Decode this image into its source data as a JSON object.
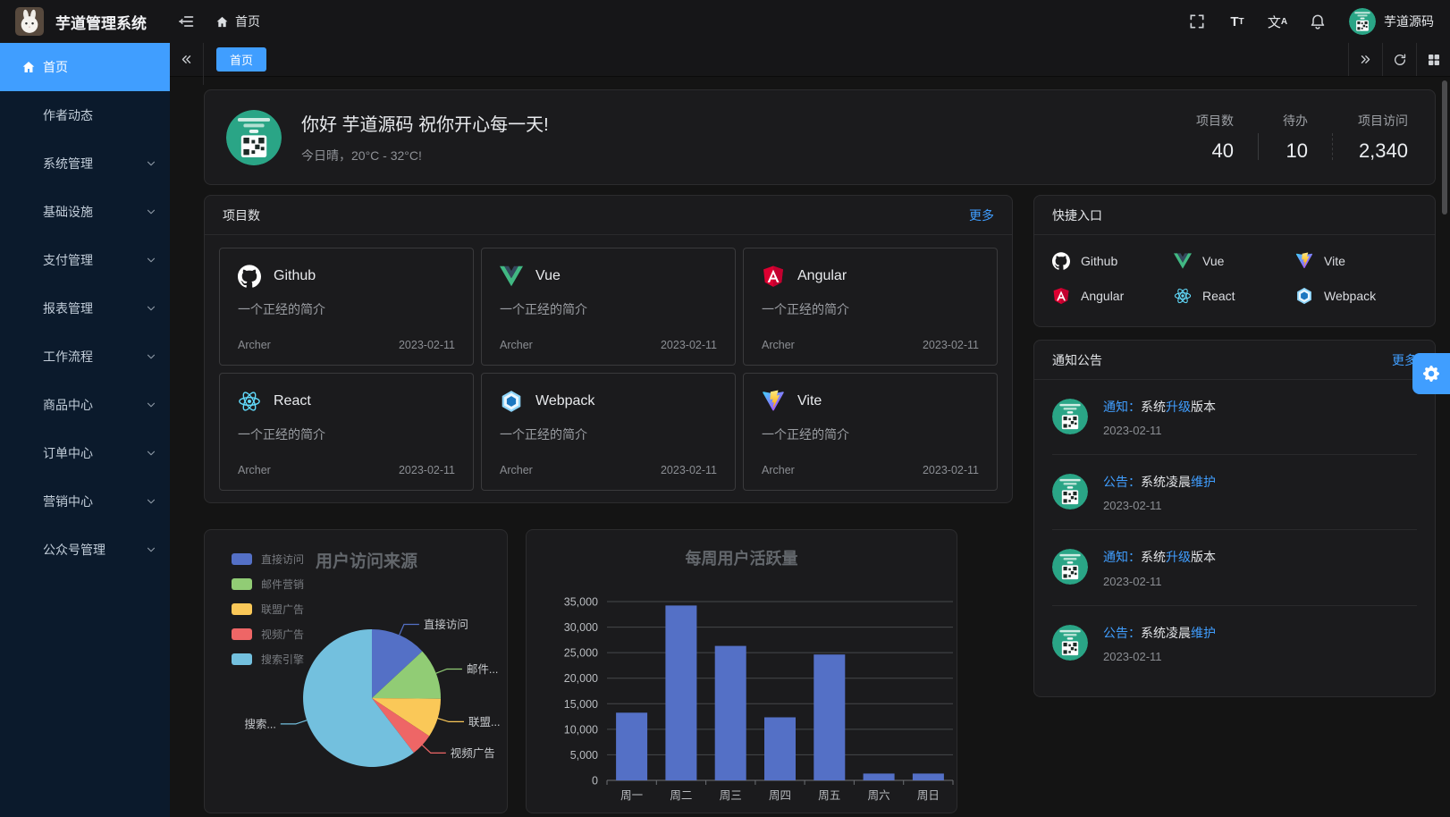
{
  "accent_color": "#409eff",
  "header": {
    "title": "芋道管理系统",
    "breadcrumb_home": "首页",
    "user_name": "芋道源码"
  },
  "tabbar": {
    "active_tab": "首页"
  },
  "sidebar": {
    "items": [
      {
        "id": "home",
        "label": "首页",
        "icon": "home",
        "active": true,
        "expandable": false
      },
      {
        "id": "author-trends",
        "label": "作者动态",
        "active": false,
        "expandable": false
      },
      {
        "id": "system",
        "label": "系统管理",
        "active": false,
        "expandable": true
      },
      {
        "id": "infra",
        "label": "基础设施",
        "active": false,
        "expandable": true
      },
      {
        "id": "pay",
        "label": "支付管理",
        "active": false,
        "expandable": true
      },
      {
        "id": "report",
        "label": "报表管理",
        "active": false,
        "expandable": true
      },
      {
        "id": "workflow",
        "label": "工作流程",
        "active": false,
        "expandable": true
      },
      {
        "id": "product",
        "label": "商品中心",
        "active": false,
        "expandable": true
      },
      {
        "id": "order",
        "label": "订单中心",
        "active": false,
        "expandable": true
      },
      {
        "id": "marketing",
        "label": "营销中心",
        "active": false,
        "expandable": true
      },
      {
        "id": "mp",
        "label": "公众号管理",
        "active": false,
        "expandable": true
      }
    ]
  },
  "welcome": {
    "greeting": "你好 芋道源码 祝你开心每一天!",
    "weather": "今日晴，20°C - 32°C!",
    "stats": [
      {
        "label": "项目数",
        "value": "40"
      },
      {
        "label": "待办",
        "value": "10"
      },
      {
        "label": "项目访问",
        "value": "2,340"
      }
    ]
  },
  "projects": {
    "title": "项目数",
    "more_label": "更多",
    "items": [
      {
        "name": "Github",
        "icon": "github",
        "desc": "一个正经的简介",
        "author": "Archer",
        "date": "2023-02-11"
      },
      {
        "name": "Vue",
        "icon": "vue",
        "desc": "一个正经的简介",
        "author": "Archer",
        "date": "2023-02-11"
      },
      {
        "name": "Angular",
        "icon": "angular",
        "desc": "一个正经的简介",
        "author": "Archer",
        "date": "2023-02-11"
      },
      {
        "name": "React",
        "icon": "react",
        "desc": "一个正经的简介",
        "author": "Archer",
        "date": "2023-02-11"
      },
      {
        "name": "Webpack",
        "icon": "webpack",
        "desc": "一个正经的简介",
        "author": "Archer",
        "date": "2023-02-11"
      },
      {
        "name": "Vite",
        "icon": "vite",
        "desc": "一个正经的简介",
        "author": "Archer",
        "date": "2023-02-11"
      }
    ]
  },
  "shortcuts": {
    "title": "快捷入口",
    "items": [
      {
        "label": "Github",
        "icon": "github"
      },
      {
        "label": "Vue",
        "icon": "vue"
      },
      {
        "label": "Vite",
        "icon": "vite"
      },
      {
        "label": "Angular",
        "icon": "angular"
      },
      {
        "label": "React",
        "icon": "react"
      },
      {
        "label": "Webpack",
        "icon": "webpack"
      }
    ]
  },
  "notices": {
    "title": "通知公告",
    "more_label": "更多",
    "items": [
      {
        "parts": [
          {
            "text": "通知：",
            "hl": true
          },
          {
            "text": "系统",
            "hl": false
          },
          {
            "text": "升级",
            "hl": true
          },
          {
            "text": "版本",
            "hl": false
          }
        ],
        "date": "2023-02-11"
      },
      {
        "parts": [
          {
            "text": "公告：",
            "hl": true
          },
          {
            "text": "系统凌晨",
            "hl": false
          },
          {
            "text": "维护",
            "hl": true
          }
        ],
        "date": "2023-02-11"
      },
      {
        "parts": [
          {
            "text": "通知：",
            "hl": true
          },
          {
            "text": "系统",
            "hl": false
          },
          {
            "text": "升级",
            "hl": true
          },
          {
            "text": "版本",
            "hl": false
          }
        ],
        "date": "2023-02-11"
      },
      {
        "parts": [
          {
            "text": "公告：",
            "hl": true
          },
          {
            "text": "系统凌晨",
            "hl": false
          },
          {
            "text": "维护",
            "hl": true
          }
        ],
        "date": "2023-02-11"
      }
    ]
  },
  "chart_data": [
    {
      "type": "pie",
      "title": "用户访问来源",
      "legend_position": "top-left",
      "labels": [
        "直接访问",
        "邮件营销",
        "联盟广告",
        "视频广告",
        "搜索引擎"
      ],
      "label_display": [
        "直接访问",
        "邮件...",
        "联盟...",
        "视频广告",
        "搜索..."
      ],
      "values": [
        335,
        310,
        234,
        135,
        1548
      ],
      "colors": [
        "#5470c6",
        "#91cc75",
        "#fac858",
        "#ee6666",
        "#73c0de"
      ]
    },
    {
      "type": "bar",
      "title": "每周用户活跃量",
      "categories": [
        "周一",
        "周二",
        "周三",
        "周四",
        "周五",
        "周六",
        "周日"
      ],
      "values": [
        13253,
        34235,
        26321,
        12340,
        24643,
        1322,
        1324
      ],
      "ylim": [
        0,
        35000
      ],
      "ytick_step": 5000,
      "bar_color": "#5470c6",
      "grid": true,
      "legend_position": "none"
    }
  ]
}
